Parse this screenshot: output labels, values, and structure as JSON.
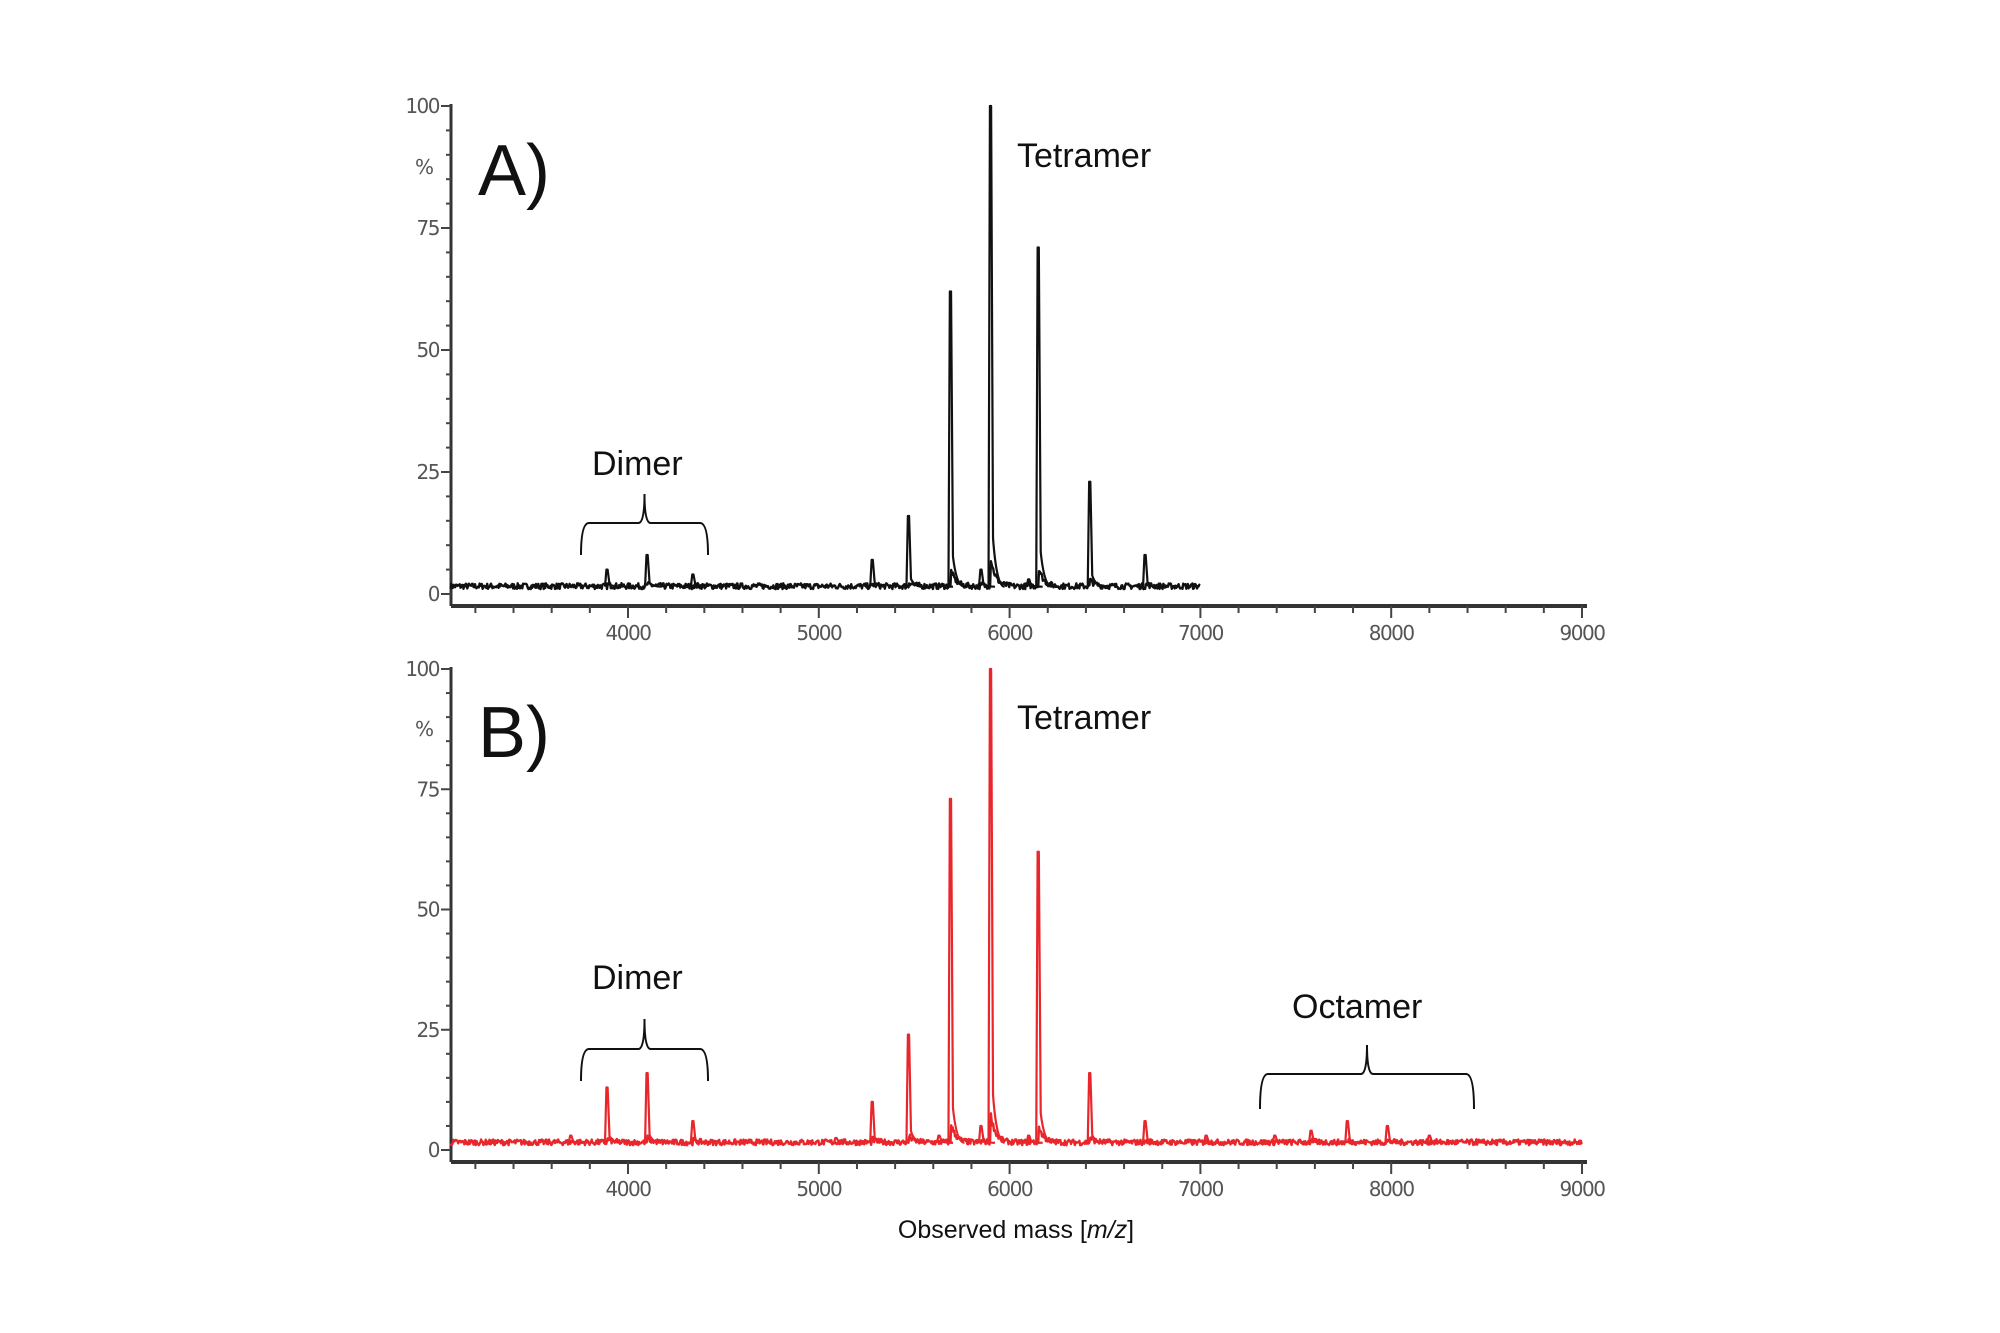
{
  "chart_data": [
    {
      "type": "line",
      "panel_label": "A)",
      "ylabel": "%",
      "xlabel": "",
      "xlim": [
        3070,
        9000
      ],
      "ylim": [
        0,
        100
      ],
      "xticks": [
        "4000",
        "5000",
        "6000",
        "7000",
        "8000",
        "9000"
      ],
      "yticks": [
        "0",
        "25",
        "50",
        "75",
        "100"
      ],
      "color": "#111111",
      "data_range": [
        3070,
        7000
      ],
      "peaks": [
        {
          "mz": 3890,
          "intensity": 5
        },
        {
          "mz": 4100,
          "intensity": 8
        },
        {
          "mz": 4340,
          "intensity": 4
        },
        {
          "mz": 5280,
          "intensity": 7
        },
        {
          "mz": 5470,
          "intensity": 16
        },
        {
          "mz": 5630,
          "intensity": 2
        },
        {
          "mz": 5690,
          "intensity": 62
        },
        {
          "mz": 5850,
          "intensity": 5
        },
        {
          "mz": 5900,
          "intensity": 100
        },
        {
          "mz": 6100,
          "intensity": 3
        },
        {
          "mz": 6150,
          "intensity": 71
        },
        {
          "mz": 6420,
          "intensity": 23
        },
        {
          "mz": 6710,
          "intensity": 8
        }
      ],
      "annotations": [
        {
          "text": "Tetramer"
        },
        {
          "text": "Dimer",
          "range": [
            3750,
            4420
          ]
        }
      ]
    },
    {
      "type": "line",
      "panel_label": "B)",
      "ylabel": "%",
      "xlabel": "Observed mass [m/z]",
      "xlim": [
        3070,
        9000
      ],
      "ylim": [
        0,
        100
      ],
      "xticks": [
        "4000",
        "5000",
        "6000",
        "7000",
        "8000",
        "9000"
      ],
      "yticks": [
        "0",
        "25",
        "50",
        "75",
        "100"
      ],
      "color": "#e8262b",
      "data_range": [
        3070,
        9000
      ],
      "peaks": [
        {
          "mz": 3700,
          "intensity": 3
        },
        {
          "mz": 3890,
          "intensity": 13
        },
        {
          "mz": 4100,
          "intensity": 16
        },
        {
          "mz": 4340,
          "intensity": 6
        },
        {
          "mz": 4610,
          "intensity": 1.5
        },
        {
          "mz": 5090,
          "intensity": 2.5
        },
        {
          "mz": 5280,
          "intensity": 10
        },
        {
          "mz": 5470,
          "intensity": 24
        },
        {
          "mz": 5630,
          "intensity": 3
        },
        {
          "mz": 5690,
          "intensity": 73
        },
        {
          "mz": 5850,
          "intensity": 5
        },
        {
          "mz": 5900,
          "intensity": 100
        },
        {
          "mz": 6100,
          "intensity": 3
        },
        {
          "mz": 6150,
          "intensity": 62
        },
        {
          "mz": 6420,
          "intensity": 16
        },
        {
          "mz": 6710,
          "intensity": 6
        },
        {
          "mz": 7030,
          "intensity": 3
        },
        {
          "mz": 7390,
          "intensity": 3
        },
        {
          "mz": 7580,
          "intensity": 4
        },
        {
          "mz": 7770,
          "intensity": 6
        },
        {
          "mz": 7980,
          "intensity": 5
        },
        {
          "mz": 8200,
          "intensity": 3
        },
        {
          "mz": 8440,
          "intensity": 1.5
        }
      ],
      "annotations": [
        {
          "text": "Tetramer"
        },
        {
          "text": "Dimer",
          "range": [
            3750,
            4420
          ]
        },
        {
          "text": "Octamer",
          "range": [
            7300,
            8440
          ]
        }
      ]
    }
  ],
  "xlabel_parts": {
    "prefix": "Observed mass [",
    "italic": "m/z",
    "suffix": "]"
  }
}
